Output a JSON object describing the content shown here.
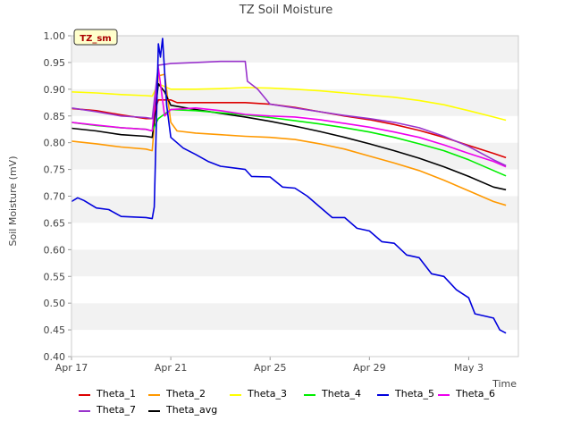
{
  "chart_data": {
    "type": "line",
    "title": "TZ Soil Moisture",
    "xlabel": "Time",
    "ylabel": "Soil Moisture (mV)",
    "badge": "TZ_sm",
    "xlim": [
      "2023-04-17",
      "2023-05-05"
    ],
    "ylim": [
      0.4,
      1.0
    ],
    "x_ticks": [
      "Apr 17",
      "Apr 21",
      "Apr 25",
      "Apr 29",
      "May 3"
    ],
    "y_ticks": [
      "0.40",
      "0.45",
      "0.50",
      "0.55",
      "0.60",
      "0.65",
      "0.70",
      "0.75",
      "0.80",
      "0.85",
      "0.90",
      "0.95",
      "1.00"
    ],
    "grid": "horizontal bands",
    "legend_position": "bottom",
    "series": [
      {
        "name": "Theta_1",
        "color": "#dd0000",
        "points": [
          [
            "2023-04-17",
            0.864
          ],
          [
            "2023-04-18",
            0.86
          ],
          [
            "2023-04-19",
            0.852
          ],
          [
            "2023-04-20",
            0.845
          ],
          [
            "2023-04-20 06:00",
            0.845
          ],
          [
            "2023-04-20 12:00",
            0.88
          ],
          [
            "2023-04-21",
            0.88
          ],
          [
            "2023-04-21 06:00",
            0.875
          ],
          [
            "2023-04-22",
            0.875
          ],
          [
            "2023-04-24",
            0.875
          ],
          [
            "2023-04-25",
            0.872
          ],
          [
            "2023-04-26",
            0.866
          ],
          [
            "2023-04-27",
            0.858
          ],
          [
            "2023-04-28",
            0.85
          ],
          [
            "2023-04-29",
            0.843
          ],
          [
            "2023-04-30",
            0.834
          ],
          [
            "2023-05-01",
            0.823
          ],
          [
            "2023-05-02",
            0.81
          ],
          [
            "2023-05-03",
            0.795
          ],
          [
            "2023-05-04",
            0.78
          ],
          [
            "2023-05-04 12:00",
            0.772
          ]
        ]
      },
      {
        "name": "Theta_2",
        "color": "#ff9900",
        "points": [
          [
            "2023-04-17",
            0.803
          ],
          [
            "2023-04-18",
            0.798
          ],
          [
            "2023-04-19",
            0.792
          ],
          [
            "2023-04-20",
            0.788
          ],
          [
            "2023-04-20 06:00",
            0.785
          ],
          [
            "2023-04-20 12:00",
            0.925
          ],
          [
            "2023-04-20 18:00",
            0.928
          ],
          [
            "2023-04-21",
            0.838
          ],
          [
            "2023-04-21 06:00",
            0.822
          ],
          [
            "2023-04-22",
            0.818
          ],
          [
            "2023-04-23",
            0.815
          ],
          [
            "2023-04-24",
            0.812
          ],
          [
            "2023-04-25",
            0.81
          ],
          [
            "2023-04-26",
            0.806
          ],
          [
            "2023-04-27",
            0.798
          ],
          [
            "2023-04-28",
            0.788
          ],
          [
            "2023-04-29",
            0.775
          ],
          [
            "2023-04-30",
            0.762
          ],
          [
            "2023-05-01",
            0.748
          ],
          [
            "2023-05-02",
            0.73
          ],
          [
            "2023-05-03",
            0.71
          ],
          [
            "2023-05-04",
            0.69
          ],
          [
            "2023-05-04 12:00",
            0.683
          ]
        ]
      },
      {
        "name": "Theta_3",
        "color": "#ffff00",
        "points": [
          [
            "2023-04-17",
            0.895
          ],
          [
            "2023-04-18",
            0.893
          ],
          [
            "2023-04-19",
            0.89
          ],
          [
            "2023-04-20",
            0.888
          ],
          [
            "2023-04-20 06:00",
            0.887
          ],
          [
            "2023-04-20 12:00",
            0.91
          ],
          [
            "2023-04-21",
            0.9
          ],
          [
            "2023-04-22",
            0.9
          ],
          [
            "2023-04-23",
            0.901
          ],
          [
            "2023-04-24",
            0.903
          ],
          [
            "2023-04-25",
            0.902
          ],
          [
            "2023-04-26",
            0.9
          ],
          [
            "2023-04-27",
            0.897
          ],
          [
            "2023-04-28",
            0.893
          ],
          [
            "2023-04-29",
            0.889
          ],
          [
            "2023-04-30",
            0.885
          ],
          [
            "2023-05-01",
            0.879
          ],
          [
            "2023-05-02",
            0.871
          ],
          [
            "2023-05-03",
            0.86
          ],
          [
            "2023-05-04",
            0.848
          ],
          [
            "2023-05-04 12:00",
            0.842
          ]
        ]
      },
      {
        "name": "Theta_4",
        "color": "#00ee00",
        "points": [
          [
            "2023-04-17",
            0.838
          ],
          [
            "2023-04-18",
            0.832
          ],
          [
            "2023-04-19",
            0.828
          ],
          [
            "2023-04-20",
            0.825
          ],
          [
            "2023-04-20 06:00",
            0.822
          ],
          [
            "2023-04-20 12:00",
            0.845
          ],
          [
            "2023-04-21",
            0.862
          ],
          [
            "2023-04-22",
            0.86
          ],
          [
            "2023-04-23",
            0.856
          ],
          [
            "2023-04-24",
            0.852
          ],
          [
            "2023-04-25",
            0.847
          ],
          [
            "2023-04-26",
            0.841
          ],
          [
            "2023-04-27",
            0.835
          ],
          [
            "2023-04-28",
            0.828
          ],
          [
            "2023-04-29",
            0.82
          ],
          [
            "2023-04-30",
            0.81
          ],
          [
            "2023-05-01",
            0.798
          ],
          [
            "2023-05-02",
            0.785
          ],
          [
            "2023-05-03",
            0.768
          ],
          [
            "2023-05-04",
            0.748
          ],
          [
            "2023-05-04 12:00",
            0.738
          ]
        ]
      },
      {
        "name": "Theta_5",
        "color": "#0000dd",
        "points": [
          [
            "2023-04-17",
            0.69
          ],
          [
            "2023-04-17 06:00",
            0.697
          ],
          [
            "2023-04-17 12:00",
            0.692
          ],
          [
            "2023-04-18",
            0.678
          ],
          [
            "2023-04-18 12:00",
            0.675
          ],
          [
            "2023-04-19",
            0.662
          ],
          [
            "2023-04-20",
            0.66
          ],
          [
            "2023-04-20 06:00",
            0.658
          ],
          [
            "2023-04-20 08:00",
            0.68
          ],
          [
            "2023-04-20 12:00",
            0.985
          ],
          [
            "2023-04-20 14:00",
            0.96
          ],
          [
            "2023-04-20 16:00",
            0.995
          ],
          [
            "2023-04-20 20:00",
            0.87
          ],
          [
            "2023-04-21",
            0.81
          ],
          [
            "2023-04-21 12:00",
            0.79
          ],
          [
            "2023-04-22",
            0.778
          ],
          [
            "2023-04-22 12:00",
            0.765
          ],
          [
            "2023-04-23",
            0.756
          ],
          [
            "2023-04-24",
            0.75
          ],
          [
            "2023-04-24 06:00",
            0.737
          ],
          [
            "2023-04-25",
            0.736
          ],
          [
            "2023-04-25 12:00",
            0.717
          ],
          [
            "2023-04-26",
            0.715
          ],
          [
            "2023-04-26 12:00",
            0.7
          ],
          [
            "2023-04-27",
            0.68
          ],
          [
            "2023-04-27 12:00",
            0.66
          ],
          [
            "2023-04-28",
            0.66
          ],
          [
            "2023-04-28 12:00",
            0.64
          ],
          [
            "2023-04-29",
            0.635
          ],
          [
            "2023-04-29 12:00",
            0.615
          ],
          [
            "2023-04-30",
            0.612
          ],
          [
            "2023-04-30 12:00",
            0.59
          ],
          [
            "2023-05-01",
            0.585
          ],
          [
            "2023-05-01 12:00",
            0.555
          ],
          [
            "2023-05-02",
            0.55
          ],
          [
            "2023-05-02 12:00",
            0.525
          ],
          [
            "2023-05-03",
            0.51
          ],
          [
            "2023-05-03 06:00",
            0.48
          ],
          [
            "2023-05-04",
            0.472
          ],
          [
            "2023-05-04 06:00",
            0.45
          ],
          [
            "2023-05-04 12:00",
            0.444
          ]
        ]
      },
      {
        "name": "Theta_6",
        "color": "#ee00ee",
        "points": [
          [
            "2023-04-17",
            0.838
          ],
          [
            "2023-04-18",
            0.833
          ],
          [
            "2023-04-19",
            0.828
          ],
          [
            "2023-04-20",
            0.825
          ],
          [
            "2023-04-20 06:00",
            0.822
          ],
          [
            "2023-04-20 12:00",
            0.94
          ],
          [
            "2023-04-20 18:00",
            0.85
          ],
          [
            "2023-04-21",
            0.862
          ],
          [
            "2023-04-22",
            0.865
          ],
          [
            "2023-04-23",
            0.86
          ],
          [
            "2023-04-24",
            0.853
          ],
          [
            "2023-04-25",
            0.85
          ],
          [
            "2023-04-26",
            0.848
          ],
          [
            "2023-04-27",
            0.843
          ],
          [
            "2023-04-28",
            0.836
          ],
          [
            "2023-04-29",
            0.829
          ],
          [
            "2023-04-30",
            0.82
          ],
          [
            "2023-05-01",
            0.81
          ],
          [
            "2023-05-02",
            0.796
          ],
          [
            "2023-05-03",
            0.78
          ],
          [
            "2023-05-04",
            0.765
          ],
          [
            "2023-05-04 12:00",
            0.755
          ]
        ]
      },
      {
        "name": "Theta_7",
        "color": "#9933cc",
        "points": [
          [
            "2023-04-17",
            0.865
          ],
          [
            "2023-04-18",
            0.858
          ],
          [
            "2023-04-19",
            0.85
          ],
          [
            "2023-04-20",
            0.847
          ],
          [
            "2023-04-20 06:00",
            0.845
          ],
          [
            "2023-04-20 12:00",
            0.945
          ],
          [
            "2023-04-21",
            0.948
          ],
          [
            "2023-04-22",
            0.95
          ],
          [
            "2023-04-23",
            0.952
          ],
          [
            "2023-04-24",
            0.952
          ],
          [
            "2023-04-24 02:00",
            0.915
          ],
          [
            "2023-04-24 12:00",
            0.9
          ],
          [
            "2023-04-25",
            0.872
          ],
          [
            "2023-04-26",
            0.865
          ],
          [
            "2023-04-27",
            0.858
          ],
          [
            "2023-04-28",
            0.851
          ],
          [
            "2023-04-29",
            0.845
          ],
          [
            "2023-04-30",
            0.838
          ],
          [
            "2023-05-01",
            0.828
          ],
          [
            "2023-05-02",
            0.812
          ],
          [
            "2023-05-03",
            0.793
          ],
          [
            "2023-05-04",
            0.768
          ],
          [
            "2023-05-04 12:00",
            0.757
          ]
        ]
      },
      {
        "name": "Theta_avg",
        "color": "#000000",
        "points": [
          [
            "2023-04-17",
            0.827
          ],
          [
            "2023-04-18",
            0.822
          ],
          [
            "2023-04-19",
            0.815
          ],
          [
            "2023-04-20",
            0.812
          ],
          [
            "2023-04-20 06:00",
            0.81
          ],
          [
            "2023-04-20 12:00",
            0.91
          ],
          [
            "2023-04-20 18:00",
            0.895
          ],
          [
            "2023-04-21",
            0.87
          ],
          [
            "2023-04-22",
            0.862
          ],
          [
            "2023-04-23",
            0.855
          ],
          [
            "2023-04-24",
            0.848
          ],
          [
            "2023-04-25",
            0.84
          ],
          [
            "2023-04-26",
            0.831
          ],
          [
            "2023-04-27",
            0.821
          ],
          [
            "2023-04-28",
            0.81
          ],
          [
            "2023-04-29",
            0.798
          ],
          [
            "2023-04-30",
            0.785
          ],
          [
            "2023-05-01",
            0.771
          ],
          [
            "2023-05-02",
            0.755
          ],
          [
            "2023-05-03",
            0.737
          ],
          [
            "2023-05-04",
            0.717
          ],
          [
            "2023-05-04 12:00",
            0.712
          ]
        ]
      }
    ]
  }
}
